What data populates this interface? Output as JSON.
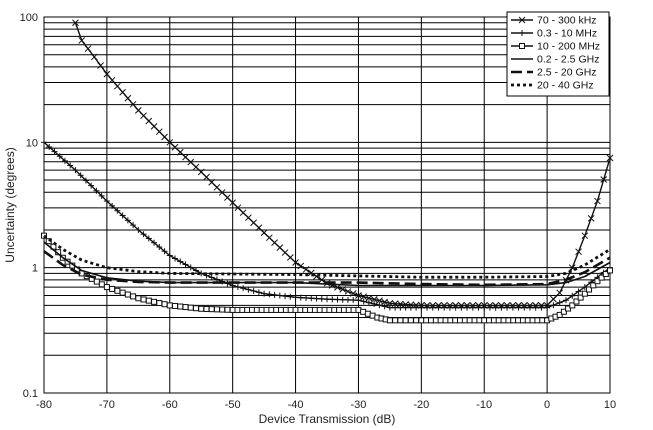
{
  "chart_data": {
    "type": "line",
    "xlabel": "Device Transmission (dB)",
    "ylabel": "Uncertainty (degrees)",
    "x_ticks": [
      "-80",
      "-70",
      "-60",
      "-50",
      "-40",
      "-30",
      "-20",
      "-10",
      "0",
      "10"
    ],
    "y_ticks": [
      "0.1",
      "1",
      "10",
      "100"
    ],
    "xlim": [
      -80,
      10
    ],
    "ylim": [
      0.1,
      100
    ],
    "y_scale": "log",
    "grid": true,
    "legend_position": "top-right",
    "series": [
      {
        "name": "70 - 300 kHz",
        "marker": "x",
        "line": "solid",
        "points": [
          [
            -75,
            90
          ],
          [
            -74,
            65
          ],
          [
            -72,
            48
          ],
          [
            -70,
            35
          ],
          [
            -65,
            18
          ],
          [
            -60,
            10
          ],
          [
            -55,
            5.8
          ],
          [
            -50,
            3.3
          ],
          [
            -45,
            1.9
          ],
          [
            -40,
            1.1
          ],
          [
            -35,
            0.75
          ],
          [
            -30,
            0.6
          ],
          [
            -25,
            0.52
          ],
          [
            -20,
            0.5
          ],
          [
            -10,
            0.5
          ],
          [
            0,
            0.5
          ],
          [
            2,
            0.63
          ],
          [
            4,
            1.0
          ],
          [
            6,
            1.8
          ],
          [
            8,
            3.4
          ],
          [
            10,
            7.5
          ]
        ]
      },
      {
        "name": "0.3 - 10 MHz",
        "marker": "+",
        "line": "solid",
        "points": [
          [
            -80,
            10
          ],
          [
            -75,
            6
          ],
          [
            -70,
            3.4
          ],
          [
            -65,
            2.0
          ],
          [
            -60,
            1.25
          ],
          [
            -55,
            0.9
          ],
          [
            -50,
            0.72
          ],
          [
            -45,
            0.62
          ],
          [
            -40,
            0.58
          ],
          [
            -35,
            0.56
          ],
          [
            -30,
            0.55
          ],
          [
            -25,
            0.48
          ],
          [
            -20,
            0.48
          ],
          [
            -10,
            0.48
          ],
          [
            0,
            0.48
          ],
          [
            3,
            0.55
          ],
          [
            6,
            0.7
          ],
          [
            10,
            1.0
          ]
        ]
      },
      {
        "name": "10 - 200 MHz",
        "marker": "square",
        "line": "solid",
        "points": [
          [
            -80,
            1.8
          ],
          [
            -77,
            1.2
          ],
          [
            -74,
            0.9
          ],
          [
            -70,
            0.7
          ],
          [
            -65,
            0.57
          ],
          [
            -60,
            0.5
          ],
          [
            -55,
            0.47
          ],
          [
            -50,
            0.46
          ],
          [
            -40,
            0.46
          ],
          [
            -30,
            0.46
          ],
          [
            -27,
            0.4
          ],
          [
            -25,
            0.38
          ],
          [
            -20,
            0.38
          ],
          [
            -10,
            0.38
          ],
          [
            0,
            0.38
          ],
          [
            2,
            0.42
          ],
          [
            4,
            0.5
          ],
          [
            6,
            0.62
          ],
          [
            8,
            0.78
          ],
          [
            10,
            0.95
          ]
        ]
      },
      {
        "name": "0.2 - 2.5 GHz",
        "marker": "none",
        "line": "solid",
        "points": [
          [
            -80,
            1.6
          ],
          [
            -77,
            1.2
          ],
          [
            -74,
            0.95
          ],
          [
            -70,
            0.83
          ],
          [
            -65,
            0.78
          ],
          [
            -60,
            0.76
          ],
          [
            -50,
            0.76
          ],
          [
            -40,
            0.76
          ],
          [
            -35,
            0.74
          ],
          [
            -30,
            0.72
          ],
          [
            -25,
            0.72
          ],
          [
            -20,
            0.72
          ],
          [
            -10,
            0.72
          ],
          [
            0,
            0.73
          ],
          [
            3,
            0.76
          ],
          [
            6,
            0.85
          ],
          [
            10,
            1.1
          ]
        ]
      },
      {
        "name": "2.5 - 20 GHz",
        "marker": "none",
        "line": "longdash",
        "points": [
          [
            -80,
            1.35
          ],
          [
            -77,
            1.05
          ],
          [
            -74,
            0.88
          ],
          [
            -70,
            0.8
          ],
          [
            -65,
            0.77
          ],
          [
            -60,
            0.76
          ],
          [
            -50,
            0.76
          ],
          [
            -40,
            0.76
          ],
          [
            -30,
            0.76
          ],
          [
            -20,
            0.74
          ],
          [
            -10,
            0.73
          ],
          [
            0,
            0.74
          ],
          [
            3,
            0.8
          ],
          [
            6,
            0.92
          ],
          [
            10,
            1.2
          ]
        ]
      },
      {
        "name": "20 - 40 GHz",
        "marker": "none",
        "line": "dot",
        "points": [
          [
            -80,
            1.8
          ],
          [
            -77,
            1.4
          ],
          [
            -74,
            1.15
          ],
          [
            -70,
            1.0
          ],
          [
            -65,
            0.93
          ],
          [
            -60,
            0.9
          ],
          [
            -50,
            0.89
          ],
          [
            -40,
            0.88
          ],
          [
            -30,
            0.86
          ],
          [
            -20,
            0.84
          ],
          [
            -10,
            0.84
          ],
          [
            0,
            0.85
          ],
          [
            3,
            0.9
          ],
          [
            6,
            1.05
          ],
          [
            10,
            1.4
          ]
        ]
      }
    ]
  }
}
